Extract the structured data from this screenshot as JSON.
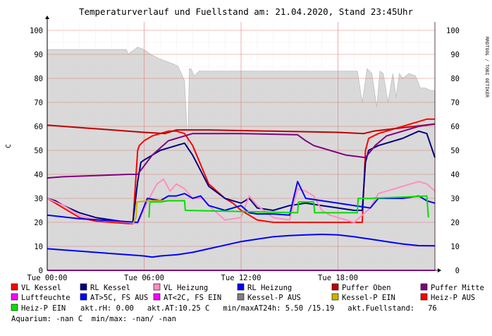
{
  "colors": {
    "background": "#ffffff",
    "plot_bg": "#ffffff",
    "area_fill": "#d9d9d9",
    "area_stroke": "#bdbdbd",
    "grid_minor": "#e8c8c8",
    "grid_major": "#e07a7a",
    "axis": "#000000",
    "text": "#000000",
    "watermark": "#cfcfcf"
  },
  "chart_data": {
    "type": "line",
    "title": "Temperaturverlauf und Fuellstand am: 21.04.2020, Stand 23:45Uhr",
    "ylabel": "C",
    "watermark": "RRDTOOL / TOBI OETIKER",
    "x_unit": "hour",
    "xlim": [
      0,
      24
    ],
    "ylim": [
      0,
      105
    ],
    "x_ticks": [
      {
        "x": 0,
        "label": "Tue 00:00"
      },
      {
        "x": 6,
        "label": "Tue 06:00"
      },
      {
        "x": 12,
        "label": "Tue 12:00"
      },
      {
        "x": 18,
        "label": "Tue 18:00"
      }
    ],
    "y_ticks": [
      0,
      10,
      20,
      30,
      40,
      50,
      60,
      70,
      80,
      90,
      100
    ],
    "grid": true,
    "legend_placement": "bottom",
    "fuellstand_area": {
      "name": "Fuellstand",
      "color": "#d9d9d9",
      "x": [
        0,
        4.9,
        5.0,
        5.6,
        6.0,
        6.4,
        7.0,
        7.8,
        8.1,
        8.5,
        8.7,
        8.8,
        8.9,
        9.1,
        9.4,
        9.6,
        10.5,
        12,
        14,
        16,
        18,
        19.2,
        19.5,
        19.8,
        20.1,
        20.4,
        20.6,
        20.8,
        21.1,
        21.4,
        21.6,
        21.8,
        22.0,
        22.4,
        22.8,
        23.1,
        23.4,
        23.7,
        24
      ],
      "y": [
        92,
        92,
        90,
        93,
        92,
        90,
        88,
        86,
        85,
        79,
        51,
        84,
        84,
        81,
        83,
        83,
        83,
        83,
        83,
        83,
        83,
        83,
        70,
        84,
        82,
        68,
        83,
        82,
        70,
        82,
        72,
        82,
        80,
        82,
        81,
        76,
        76,
        75,
        75
      ]
    },
    "series": [
      {
        "name": "VL Kessel",
        "color": "#ff0000",
        "x": [
          0,
          0.5,
          1,
          2,
          3,
          4,
          5,
          5.3,
          5.6,
          5.7,
          6,
          6.5,
          7,
          7.5,
          8,
          8.5,
          9,
          10,
          11,
          11.5,
          12,
          12.5,
          13,
          14,
          15,
          16,
          17,
          18,
          19,
          19.5,
          19.7,
          19.9,
          20.5,
          21,
          22,
          23,
          23.5,
          24
        ],
        "y": [
          30,
          28,
          26,
          22,
          20.5,
          20,
          19.5,
          19.5,
          50,
          52,
          54,
          56,
          57,
          58,
          58,
          57,
          52,
          36,
          30,
          28,
          25,
          23,
          21,
          20,
          20,
          20,
          20,
          20,
          20,
          20,
          50,
          55,
          57,
          58,
          60,
          62,
          63,
          63
        ]
      },
      {
        "name": "RL Kessel",
        "color": "#000080",
        "x": [
          0,
          0.5,
          1,
          2,
          3,
          4,
          5,
          5.3,
          5.6,
          5.8,
          6,
          6.5,
          7,
          7.5,
          8,
          8.5,
          9,
          10,
          11,
          11.5,
          12,
          12.5,
          13,
          14,
          15,
          16,
          17,
          18,
          19,
          19.5,
          19.7,
          19.9,
          20.5,
          21,
          22,
          23,
          23.5,
          24
        ],
        "y": [
          30,
          29,
          27,
          24,
          22,
          21,
          20,
          20,
          37,
          45,
          46,
          48,
          50,
          51,
          52,
          53,
          48,
          35,
          30,
          29,
          28,
          30,
          26,
          25,
          27,
          28,
          27,
          26,
          25,
          25,
          45,
          50,
          52,
          53,
          55,
          58,
          57,
          47
        ]
      },
      {
        "name": "VL Heizung",
        "color": "#ff8fbf",
        "x": [
          0,
          1,
          2,
          3,
          4,
          5,
          5.6,
          6.3,
          6.8,
          7.2,
          7.6,
          8.0,
          8.5,
          9,
          9.6,
          10,
          11,
          12,
          12.5,
          13,
          14,
          15,
          15.5,
          16,
          16.5,
          17,
          17.5,
          18,
          19,
          20,
          20.5,
          21,
          21.5,
          22,
          22.5,
          23,
          23.5,
          24
        ],
        "y": [
          30,
          27,
          23,
          21,
          20.5,
          20,
          19.5,
          30,
          36,
          38,
          33,
          36,
          34,
          30,
          30,
          27,
          21,
          22,
          31,
          27,
          22,
          21,
          34,
          33,
          31,
          25,
          23,
          22,
          20,
          26,
          32,
          33,
          34,
          35,
          36,
          37,
          36,
          33
        ]
      },
      {
        "name": "RL Heizung",
        "color": "#0000ff",
        "x": [
          0,
          2,
          4,
          5.6,
          6.2,
          7,
          7.5,
          8,
          8.5,
          9,
          9.5,
          10,
          11,
          12,
          12.5,
          13,
          14,
          15,
          15.5,
          16,
          17,
          18,
          19,
          20,
          20.5,
          21,
          22,
          23,
          23.5,
          24
        ],
        "y": [
          23,
          21.5,
          20.7,
          20,
          30,
          29,
          31,
          31,
          32,
          30,
          31,
          27,
          25,
          27,
          24,
          23.5,
          23.5,
          23,
          37,
          30,
          29,
          28,
          27,
          26,
          30,
          30,
          30,
          31,
          29,
          28
        ]
      },
      {
        "name": "Puffer Oben",
        "color": "#c00000",
        "x": [
          0,
          3,
          6,
          7.3,
          8,
          10,
          14,
          18,
          19.6,
          20.2,
          24
        ],
        "y": [
          60.5,
          59,
          57.5,
          57,
          58.5,
          58.5,
          58,
          57.5,
          57,
          58,
          61
        ]
      },
      {
        "name": "Puffer Mitte",
        "color": "#800080",
        "x": [
          0,
          1,
          3,
          5,
          5.6,
          6.5,
          7.5,
          8,
          9,
          12,
          15.5,
          16,
          16.5,
          17.5,
          18.5,
          19.7,
          20.3,
          21,
          22,
          23,
          24
        ],
        "y": [
          38.5,
          39,
          39.5,
          40,
          40,
          48,
          54,
          55,
          57,
          57,
          56.5,
          54,
          52,
          50,
          48,
          47,
          52,
          56,
          58,
          60,
          61
        ]
      },
      {
        "name": "Luftfeuchte",
        "color": "#ff00ff",
        "x": [
          0,
          24
        ],
        "y": [
          0,
          0
        ]
      },
      {
        "name": "AT>5C, FS AUS",
        "color": "#0000ff",
        "x": [
          0,
          1,
          2,
          3,
          4,
          5,
          6,
          6.5,
          7,
          8,
          9,
          10,
          11,
          12,
          13,
          14,
          15,
          16,
          17,
          18,
          19,
          20,
          21,
          22,
          23,
          24
        ],
        "y": [
          9,
          8.5,
          8,
          7.5,
          7,
          6.5,
          6,
          5.5,
          6,
          6.5,
          7.5,
          9,
          10.5,
          12,
          13,
          14,
          14.5,
          14.8,
          15,
          14.8,
          14,
          13,
          12,
          11,
          10.3,
          10.2
        ]
      },
      {
        "name": "AT<2C, FS EIN",
        "color": "#ff00ff",
        "x": [],
        "y": []
      },
      {
        "name": "Kessel-P AUS",
        "color": "#808080",
        "x": [],
        "y": []
      },
      {
        "name": "Kessel-P EIN",
        "color": "#c8b400",
        "x": [
          5.3,
          5.5,
          5.55,
          6.3,
          8.5
        ],
        "y": [
          19.5,
          22,
          28.5,
          29,
          29
        ]
      },
      {
        "name": "Heiz-P AUS",
        "color": "#ff0000",
        "x": [],
        "y": []
      },
      {
        "name": "Heiz-P EIN",
        "color": "#00e000",
        "x": [
          6.3,
          6.35,
          7,
          7.5,
          8.5,
          8.55,
          15.5,
          15.55,
          16.5,
          16.55,
          19.2,
          19.25,
          20,
          22,
          23.5,
          23.6
        ],
        "y": [
          22,
          28.5,
          28.5,
          29,
          29,
          25,
          24,
          28.5,
          28.5,
          24,
          24,
          30,
          30,
          30.5,
          31,
          22
        ]
      }
    ]
  },
  "legend_rows": [
    [
      {
        "label": "VL Kessel",
        "color": "#ff0000"
      },
      {
        "label": "RL Kessel",
        "color": "#000080"
      },
      {
        "label": "VL Heizung",
        "color": "#ff8fbf"
      },
      {
        "label": "RL Heizung",
        "color": "#0000ff"
      },
      {
        "label": "Puffer Oben",
        "color": "#c00000"
      },
      {
        "label": "Puffer Mitte",
        "color": "#800080"
      }
    ],
    [
      {
        "label": "Luftfeuchte",
        "color": "#ff00ff"
      },
      {
        "label": "AT>5C, FS AUS",
        "color": "#0000ff"
      },
      {
        "label": "AT<2C, FS EIN",
        "color": "#ff00ff"
      },
      {
        "label": "Kessel-P AUS",
        "color": "#808080"
      },
      {
        "label": "Kessel-P EIN",
        "color": "#c8b400"
      },
      {
        "label": "Heiz-P AUS",
        "color": "#ff0000"
      }
    ]
  ],
  "legend_row3": {
    "item": {
      "label": "Heiz-P EIN",
      "color": "#00e000"
    },
    "text": "akt.rH: 0.00   akt.AT:10.25 C   min/maxAT24h: 5.50 /15.19   akt.Fuellstand:   76"
  },
  "legend_row4": {
    "text": "Aquarium: -nan C  min/max: -nan/ -nan"
  }
}
